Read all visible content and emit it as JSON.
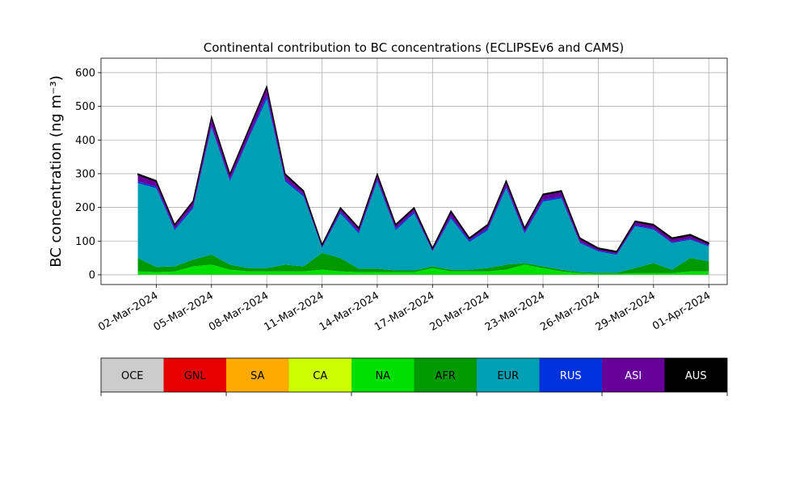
{
  "chart_data": {
    "type": "stacked_area",
    "title": "Continental contribution to BC concentrations (ECLIPSEv6 and CAMS)",
    "y_label": "BC concentration (ng m⁻³)",
    "x": [
      "2024-03-01",
      "2024-03-02",
      "2024-03-03",
      "2024-03-04",
      "2024-03-05",
      "2024-03-06",
      "2024-03-07",
      "2024-03-08",
      "2024-03-09",
      "2024-03-10",
      "2024-03-11",
      "2024-03-12",
      "2024-03-13",
      "2024-03-14",
      "2024-03-15",
      "2024-03-16",
      "2024-03-17",
      "2024-03-18",
      "2024-03-19",
      "2024-03-20",
      "2024-03-21",
      "2024-03-22",
      "2024-03-23",
      "2024-03-24",
      "2024-03-25",
      "2024-03-26",
      "2024-03-27",
      "2024-03-28",
      "2024-03-29",
      "2024-03-30",
      "2024-03-31",
      "2024-04-01"
    ],
    "xlim": [
      "2024-02-28",
      "2024-04-02"
    ],
    "xticks": [
      {
        "value": "2024-03-02",
        "label": "02-Mar-2024"
      },
      {
        "value": "2024-03-05",
        "label": "05-Mar-2024"
      },
      {
        "value": "2024-03-08",
        "label": "08-Mar-2024"
      },
      {
        "value": "2024-03-11",
        "label": "11-Mar-2024"
      },
      {
        "value": "2024-03-14",
        "label": "14-Mar-2024"
      },
      {
        "value": "2024-03-17",
        "label": "17-Mar-2024"
      },
      {
        "value": "2024-03-20",
        "label": "20-Mar-2024"
      },
      {
        "value": "2024-03-23",
        "label": "23-Mar-2024"
      },
      {
        "value": "2024-03-26",
        "label": "26-Mar-2024"
      },
      {
        "value": "2024-03-29",
        "label": "29-Mar-2024"
      },
      {
        "value": "2024-04-01",
        "label": "01-Apr-2024"
      }
    ],
    "ylim": [
      -29,
      643
    ],
    "yticks": [
      0,
      100,
      200,
      300,
      400,
      500,
      600
    ],
    "grid": true,
    "series": [
      {
        "name": "OCE",
        "color": "#cccccc",
        "values": [
          0,
          0,
          0,
          0,
          0,
          0,
          0,
          0,
          0,
          0,
          0,
          0,
          0,
          0,
          0,
          0,
          0,
          0,
          0,
          0,
          0,
          0,
          0,
          0,
          0,
          0,
          0,
          0,
          0,
          0,
          0,
          0
        ]
      },
      {
        "name": "GNL",
        "color": "#e60000",
        "values": [
          0,
          0,
          0,
          0,
          0,
          0,
          0,
          0,
          0,
          0,
          0,
          0,
          0,
          0,
          0,
          0,
          0,
          0,
          0,
          0,
          0,
          0,
          0,
          0,
          0,
          0,
          0,
          0,
          0,
          0,
          0,
          0
        ]
      },
      {
        "name": "SA",
        "color": "#ffaa00",
        "values": [
          0,
          0,
          0,
          0,
          0,
          0,
          0,
          0,
          0,
          0,
          0,
          0,
          0,
          0,
          0,
          0,
          0,
          0,
          0,
          0,
          0,
          0,
          0,
          0,
          0,
          0,
          0,
          0,
          0,
          0,
          0,
          0
        ]
      },
      {
        "name": "CA",
        "color": "#ccff00",
        "values": [
          0,
          0,
          0,
          0,
          0,
          0,
          0,
          0,
          0,
          0,
          0,
          0,
          0,
          0,
          0,
          0,
          0,
          0,
          0,
          0,
          0,
          0,
          0,
          0,
          0,
          0,
          0,
          0,
          0,
          0,
          0,
          0
        ]
      },
      {
        "name": "NA",
        "color": "#00e000",
        "values": [
          10,
          8,
          10,
          25,
          30,
          15,
          10,
          10,
          10,
          10,
          15,
          10,
          8,
          8,
          8,
          8,
          20,
          10,
          10,
          10,
          15,
          30,
          20,
          10,
          5,
          3,
          3,
          5,
          5,
          5,
          10,
          10
        ]
      },
      {
        "name": "AFR",
        "color": "#009900",
        "values": [
          40,
          15,
          15,
          20,
          30,
          15,
          10,
          10,
          20,
          15,
          50,
          40,
          10,
          10,
          5,
          5,
          5,
          5,
          5,
          10,
          15,
          5,
          5,
          5,
          3,
          3,
          3,
          15,
          30,
          10,
          40,
          30
        ]
      },
      {
        "name": "EUR",
        "color": "#00a0b4",
        "values": [
          222,
          234,
          107,
          152,
          377,
          247,
          382,
          502,
          247,
          207,
          14,
          132,
          104,
          259,
          119,
          169,
          44,
          152,
          82,
          112,
          227,
          87,
          192,
          212,
          86,
          63,
          53,
          124,
          99,
          79,
          54,
          44
        ]
      },
      {
        "name": "RUS",
        "color": "#0033dd",
        "values": [
          5,
          5,
          5,
          5,
          5,
          5,
          5,
          10,
          5,
          5,
          3,
          5,
          5,
          5,
          5,
          5,
          3,
          5,
          5,
          5,
          5,
          5,
          5,
          5,
          3,
          3,
          3,
          3,
          3,
          3,
          3,
          3
        ]
      },
      {
        "name": "ASI",
        "color": "#660099",
        "values": [
          20,
          15,
          10,
          15,
          25,
          15,
          20,
          25,
          15,
          10,
          5,
          10,
          10,
          15,
          10,
          10,
          5,
          15,
          5,
          10,
          15,
          10,
          15,
          15,
          10,
          5,
          5,
          10,
          10,
          10,
          10,
          5
        ]
      },
      {
        "name": "AUS",
        "color": "#000000",
        "values": [
          3,
          3,
          3,
          3,
          3,
          3,
          3,
          3,
          3,
          3,
          3,
          3,
          3,
          3,
          3,
          3,
          3,
          3,
          3,
          3,
          3,
          3,
          3,
          3,
          3,
          3,
          3,
          3,
          3,
          3,
          3,
          3
        ]
      }
    ]
  }
}
